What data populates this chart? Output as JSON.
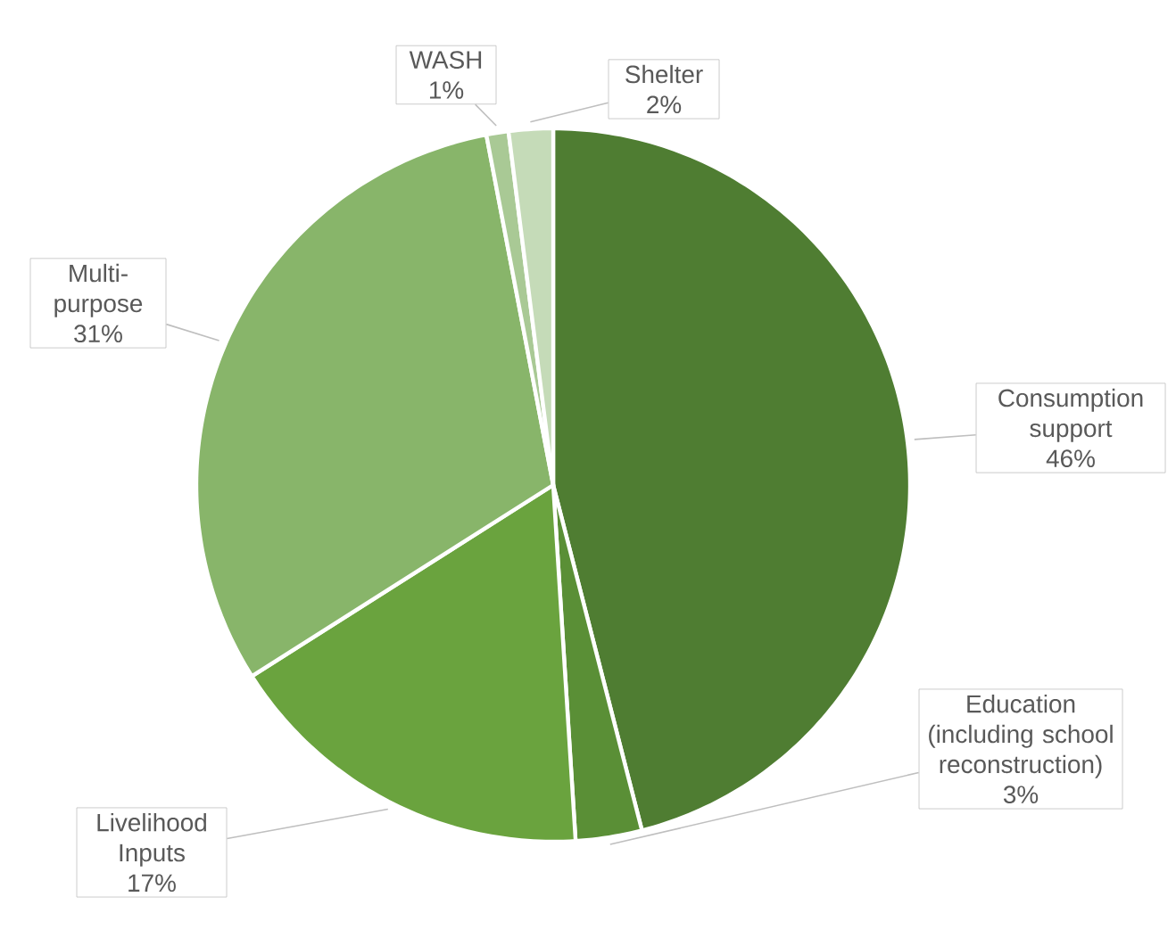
{
  "chart_data": {
    "type": "pie",
    "categories": [
      "Consumption support",
      "Education (including school reconstruction)",
      "Livelihood Inputs",
      "Multi-purpose",
      "WASH",
      "Shelter"
    ],
    "values": [
      46,
      3,
      17,
      31,
      1,
      2
    ],
    "colors": [
      "#4f7d32",
      "#5a8f36",
      "#6aa33e",
      "#88b56a",
      "#a9c995",
      "#c5dbb8"
    ],
    "value_labels": [
      "46%",
      "3%",
      "17%",
      "31%",
      "1%",
      "2%"
    ]
  }
}
